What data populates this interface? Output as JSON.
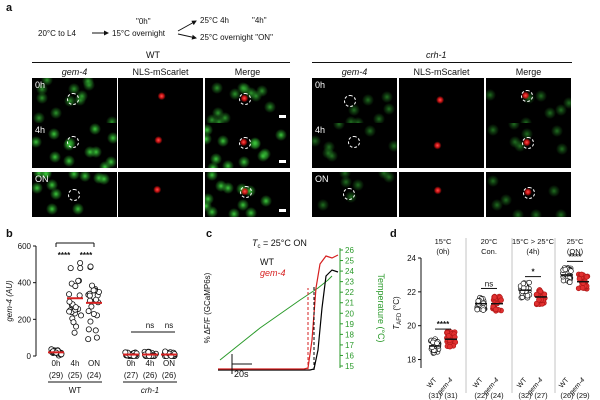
{
  "panel_labels": {
    "a": "a",
    "b": "b",
    "c": "c",
    "d": "d"
  },
  "protocol": {
    "start": "20°C to L4",
    "overnight": "15°C overnight",
    "tag_0h": "\"0h\"",
    "branch_4h": "25°C 4h",
    "tag_4h": "\"4h\"",
    "branch_on": "25°C overnight \"ON\""
  },
  "imaging": {
    "groups": [
      "WT",
      "crh-1"
    ],
    "columns": [
      "gem-4",
      "NLS-mScarlet",
      "Merge"
    ],
    "rows": [
      "0h",
      "4h",
      "ON"
    ]
  },
  "chart_data": [
    {
      "type": "scatter",
      "panel": "b",
      "ylabel": "gem-4 (AU)",
      "ylim": [
        0,
        600
      ],
      "yticks": [
        "0",
        "200",
        "400",
        "600"
      ],
      "categories": [
        "0h",
        "4h",
        "ON",
        "0h",
        "4h",
        "ON"
      ],
      "groups": [
        "WT",
        "crh-1"
      ],
      "n": [
        "(29)",
        "(25)",
        "(24)",
        "(27)",
        "(26)",
        "(26)"
      ],
      "means": [
        20,
        315,
        290,
        8,
        8,
        8
      ],
      "sig_labels": [
        "****",
        "****",
        "ns",
        "ns"
      ]
    },
    {
      "type": "line",
      "panel": "c",
      "title_prefix": "T",
      "title_sub": "c",
      "title_suffix": " = 25°C ON",
      "ylabel_left": "% ΔF/F (GCaMP6s)",
      "ylabel_right": "Temperature (°C)",
      "right_ylim": [
        15,
        26
      ],
      "right_ticks": [
        "15",
        "16",
        "17",
        "18",
        "19",
        "20",
        "21",
        "22",
        "23",
        "24",
        "25",
        "26"
      ],
      "scale_bar": "20s",
      "legend": [
        "WT",
        "gem-4"
      ],
      "colors": {
        "wt": "#000000",
        "gem4": "#d62020",
        "temperature": "#2a9a2a"
      }
    },
    {
      "type": "scatter",
      "panel": "d",
      "ylabel_main": "T",
      "ylabel_sub": "AFD",
      "ylabel_unit": " (°C)",
      "ylim": [
        17.5,
        24
      ],
      "yticks": [
        "18",
        "20",
        "22",
        "24"
      ],
      "conditions": [
        "15°C (0h)",
        "20°C Con.",
        "15°C > 25°C (4h)",
        "25°C (ON)"
      ],
      "categories": [
        "WT",
        "gem-4",
        "WT",
        "gem-4",
        "WT",
        "gem-4",
        "WT",
        "gem-4"
      ],
      "n": [
        "(31)",
        "(31)",
        "(22)",
        "(24)",
        "(32)",
        "(27)",
        "(26)",
        "(29)"
      ],
      "means": [
        18.8,
        19.2,
        21.3,
        21.3,
        22.1,
        21.7,
        23.0,
        22.6
      ],
      "sig_labels": [
        "****",
        "ns",
        "*",
        "****"
      ]
    }
  ]
}
